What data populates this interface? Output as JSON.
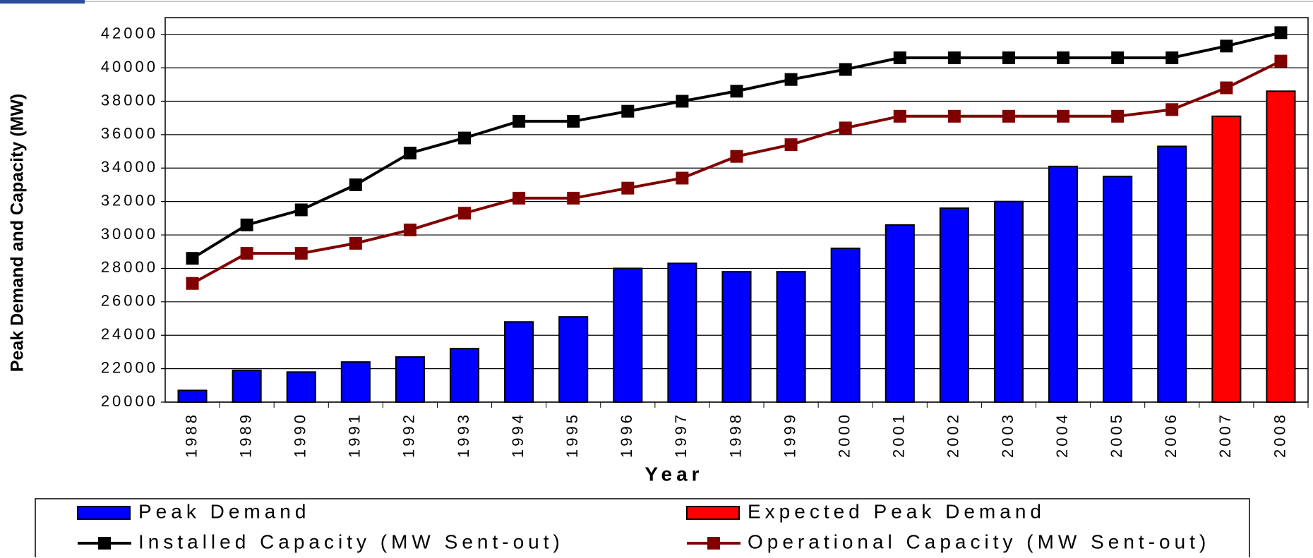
{
  "chart_data": {
    "type": "bar",
    "y_label": "Peak Demand and Capacity (MW)",
    "x_label": "Year",
    "categories": [
      "1988",
      "1989",
      "1990",
      "1991",
      "1992",
      "1993",
      "1994",
      "1995",
      "1996",
      "1997",
      "1998",
      "1999",
      "2000",
      "2001",
      "2002",
      "2003",
      "2004",
      "2005",
      "2006",
      "2007",
      "2008"
    ],
    "series": [
      {
        "name": "Peak Demand",
        "type": "bar",
        "color": "#0000ff",
        "values": [
          20700,
          21900,
          21800,
          22400,
          22700,
          23200,
          24800,
          25100,
          28000,
          28300,
          27800,
          27800,
          29200,
          30600,
          31600,
          32000,
          34100,
          33500,
          35300,
          null,
          null
        ]
      },
      {
        "name": "Expected Peak Demand",
        "type": "bar",
        "color": "#ff0000",
        "values": [
          null,
          null,
          null,
          null,
          null,
          null,
          null,
          null,
          null,
          null,
          null,
          null,
          null,
          null,
          null,
          null,
          null,
          null,
          null,
          37100,
          38600
        ]
      },
      {
        "name": "Installed Capacity (MW Sent-out)",
        "type": "line",
        "color": "#000000",
        "values": [
          28600,
          30600,
          31500,
          33000,
          34900,
          35800,
          36800,
          36800,
          37400,
          38000,
          38600,
          39300,
          39900,
          40600,
          40600,
          40600,
          40600,
          40600,
          40600,
          41300,
          42100
        ]
      },
      {
        "name": "Operational Capacity (MW Sent-out)",
        "type": "line",
        "color": "#800000",
        "values": [
          27100,
          28900,
          28900,
          29500,
          30300,
          31300,
          32200,
          32200,
          32800,
          33400,
          34700,
          35400,
          36400,
          37100,
          37100,
          37100,
          37100,
          37100,
          37500,
          38800,
          40400
        ]
      }
    ],
    "ylim": [
      20000,
      43000
    ],
    "yticks": [
      20000,
      22000,
      24000,
      26000,
      28000,
      30000,
      32000,
      34000,
      36000,
      38000,
      40000,
      42000
    ],
    "grid": true
  }
}
